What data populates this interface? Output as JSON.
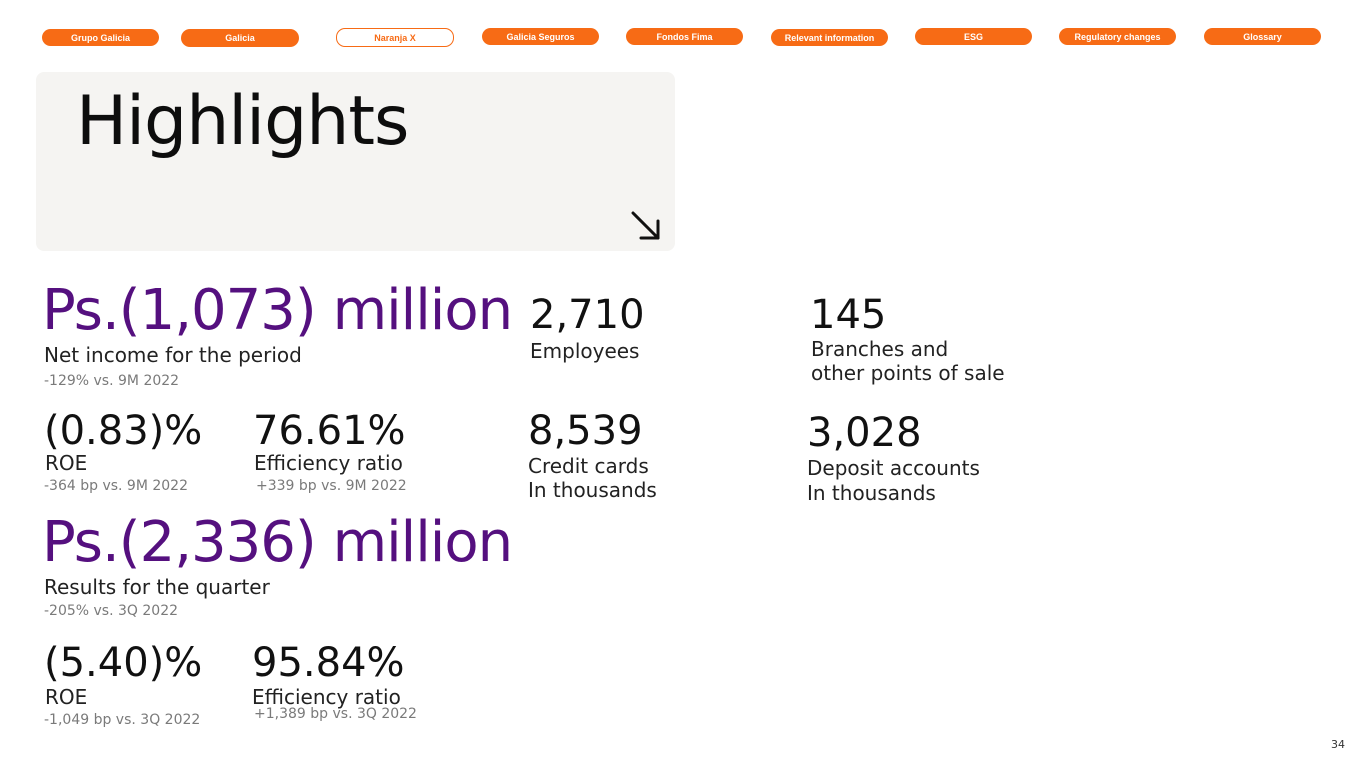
{
  "nav": {
    "tabs": [
      {
        "label": "Grupo Galicia",
        "active": false
      },
      {
        "label": "Galicia",
        "active": false
      },
      {
        "label": "Naranja X",
        "active": true
      },
      {
        "label": "Galicia Seguros",
        "active": false
      },
      {
        "label": "Fondos Fima",
        "active": false
      },
      {
        "label": "Relevant information",
        "active": false
      },
      {
        "label": "ESG",
        "active": false
      },
      {
        "label": "Regulatory changes",
        "active": false
      },
      {
        "label": "Glossary",
        "active": false
      }
    ]
  },
  "hero": {
    "title": "Highlights",
    "arrow_icon": "arrow-down-right-icon"
  },
  "period": {
    "net_income": {
      "value": "Ps.(1,073) million",
      "label": "Net income for the period",
      "change": "-129% vs. 9M 2022"
    },
    "roe": {
      "value": "(0.83)%",
      "label": "ROE",
      "change": "-364 bp vs. 9M 2022"
    },
    "efficiency": {
      "value": "76.61%",
      "label": "Efficiency ratio",
      "change": "+339 bp vs. 9M 2022"
    }
  },
  "quarter": {
    "results": {
      "value": "Ps.(2,336) million",
      "label": "Results for the quarter",
      "change": "-205% vs. 3Q 2022"
    },
    "roe": {
      "value": "(5.40)%",
      "label": "ROE",
      "change": "-1,049 bp vs. 3Q 2022"
    },
    "efficiency": {
      "value": "95.84%",
      "label": "Efficiency ratio",
      "change": "+1,389 bp vs. 3Q 2022"
    }
  },
  "stats": {
    "employees": {
      "value": "2,710",
      "label": "Employees"
    },
    "branches": {
      "value": "145",
      "label_line1": "Branches and",
      "label_line2": "other points of sale"
    },
    "credit_cards": {
      "value": "8,539",
      "label_line1": "Credit cards",
      "label_line2": "In thousands"
    },
    "deposit_accounts": {
      "value": "3,028",
      "label_line1": "Deposit accounts",
      "label_line2": "In thousands"
    }
  },
  "page_number": "34",
  "colors": {
    "accent": "#f76b15",
    "purple": "#55107f",
    "hero_bg": "#f5f4f2"
  }
}
